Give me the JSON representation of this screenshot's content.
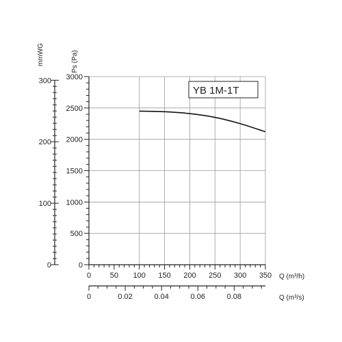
{
  "chart_data": {
    "type": "line",
    "title": "",
    "model_label": "YB 1M-1T",
    "x_axis": {
      "label": "Q (m³/h)",
      "range": [
        0,
        350
      ],
      "ticks": [
        0,
        50,
        100,
        150,
        200,
        250,
        300,
        350
      ],
      "minor_step": 10,
      "grid": [
        100,
        150,
        200,
        250,
        300,
        350
      ]
    },
    "x_axis_secondary": {
      "label": "Q (m³/s)",
      "range": [
        0,
        0.0972
      ],
      "ticks": [
        "0",
        "0.02",
        "0.04",
        "0.06",
        "0.08"
      ],
      "tick_values": [
        0,
        0.02,
        0.04,
        0.06,
        0.08
      ],
      "minor_step": 0.005
    },
    "y_axis": {
      "label": "Ps (Pa)",
      "range": [
        0,
        3000
      ],
      "ticks": [
        0,
        500,
        1000,
        1500,
        2000,
        2500,
        3000
      ],
      "minor_step": 100,
      "grid": [
        500,
        1000,
        1500,
        2000,
        2500
      ]
    },
    "y_axis_secondary": {
      "label": "mmWG",
      "range": [
        0,
        305.9
      ],
      "ticks": [
        "0",
        "100",
        "200",
        "300"
      ],
      "tick_values": [
        0,
        100,
        200,
        300
      ],
      "minor_step": 10
    },
    "series": [
      {
        "x": [
          100,
          150,
          200,
          250,
          300,
          350
        ],
        "y": [
          2450,
          2440,
          2410,
          2350,
          2250,
          2120
        ]
      }
    ]
  }
}
